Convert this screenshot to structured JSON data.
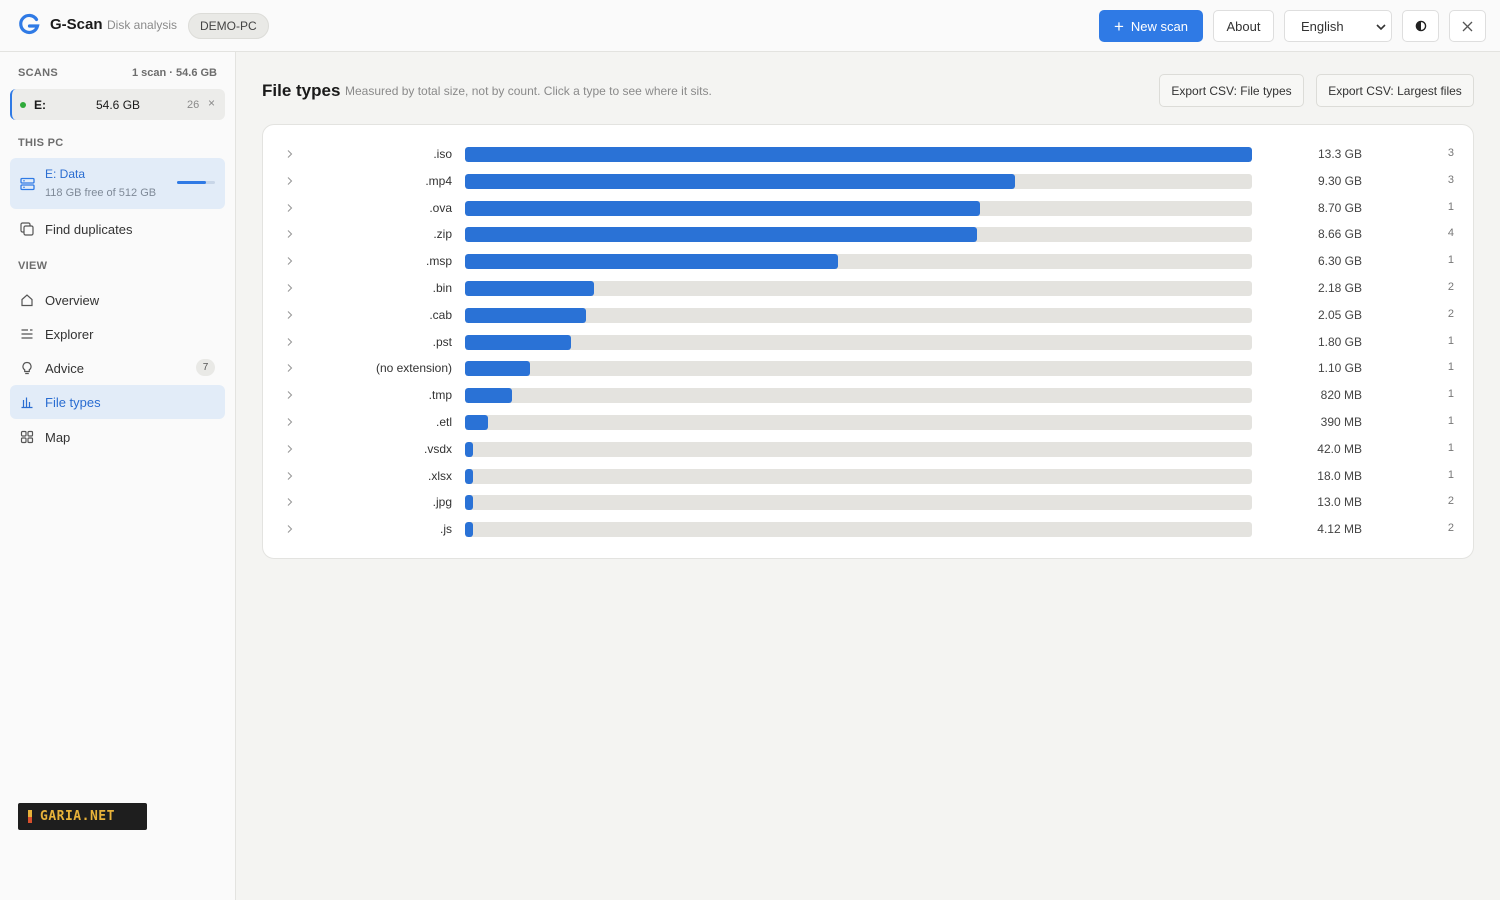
{
  "app": {
    "name": "G-Scan",
    "subtitle": "Disk analysis",
    "pc_name": "DEMO-PC"
  },
  "toolbar": {
    "new_scan": "New scan",
    "about": "About",
    "language": "English",
    "theme_icon": "contrast-icon",
    "close_icon": "close-icon"
  },
  "sidebar": {
    "scans_heading": "SCANS",
    "scans_meta": "1 scan · 54.6 GB",
    "scan": {
      "drive": "E:",
      "size": "54.6 GB",
      "count": "26"
    },
    "thispc_heading": "THIS PC",
    "drive": {
      "name": "E: Data",
      "free": "118 GB free of 512 GB",
      "used_fraction": 0.77
    },
    "find_duplicates": "Find duplicates",
    "view_heading": "VIEW",
    "nav": [
      {
        "label": "Overview",
        "icon": "home-icon"
      },
      {
        "label": "Explorer",
        "icon": "list-icon"
      },
      {
        "label": "Advice",
        "icon": "lightbulb-icon",
        "badge": "7"
      },
      {
        "label": "File types",
        "icon": "bar-chart-icon",
        "active": true
      },
      {
        "label": "Map",
        "icon": "grid-icon"
      }
    ]
  },
  "watermark": "GARIA.NET",
  "main": {
    "title": "File types",
    "subtitle": "Measured by total size, not by count. Click a type to see where it sits.",
    "export_types": "Export CSV: File types",
    "export_largest": "Export CSV: Largest files"
  },
  "file_types": [
    {
      "ext": ".iso",
      "size": "13.3 GB",
      "count": "3",
      "fraction": 1.0
    },
    {
      "ext": ".mp4",
      "size": "9.30 GB",
      "count": "3",
      "fraction": 0.699
    },
    {
      "ext": ".ova",
      "size": "8.70 GB",
      "count": "1",
      "fraction": 0.654
    },
    {
      "ext": ".zip",
      "size": "8.66 GB",
      "count": "4",
      "fraction": 0.651
    },
    {
      "ext": ".msp",
      "size": "6.30 GB",
      "count": "1",
      "fraction": 0.474
    },
    {
      "ext": ".bin",
      "size": "2.18 GB",
      "count": "2",
      "fraction": 0.164
    },
    {
      "ext": ".cab",
      "size": "2.05 GB",
      "count": "2",
      "fraction": 0.154
    },
    {
      "ext": ".pst",
      "size": "1.80 GB",
      "count": "1",
      "fraction": 0.135
    },
    {
      "ext": "(no extension)",
      "size": "1.10 GB",
      "count": "1",
      "fraction": 0.083
    },
    {
      "ext": ".tmp",
      "size": "820 MB",
      "count": "1",
      "fraction": 0.06
    },
    {
      "ext": ".etl",
      "size": "390 MB",
      "count": "1",
      "fraction": 0.029
    },
    {
      "ext": ".vsdx",
      "size": "42.0 MB",
      "count": "1",
      "fraction": 0.01
    },
    {
      "ext": ".xlsx",
      "size": "18.0 MB",
      "count": "1",
      "fraction": 0.01
    },
    {
      "ext": ".jpg",
      "size": "13.0 MB",
      "count": "2",
      "fraction": 0.01
    },
    {
      "ext": ".js",
      "size": "4.12 MB",
      "count": "2",
      "fraction": 0.01
    }
  ]
}
